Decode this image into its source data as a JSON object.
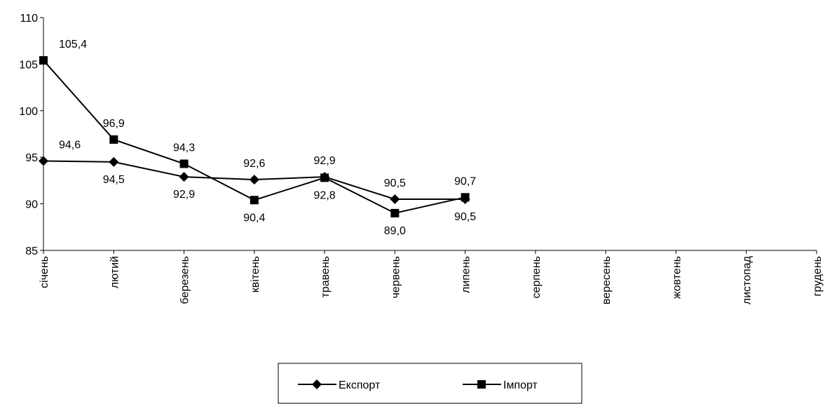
{
  "chart_data": {
    "type": "line",
    "categories": [
      "січень",
      "лютий",
      "березень",
      "квітень",
      "травень",
      "червень",
      "липень",
      "серпень",
      "вересень",
      "жовтень",
      "листопад",
      "грудень"
    ],
    "series": [
      {
        "name": "Експорт",
        "color": "#000000",
        "marker": "diamond",
        "values": [
          94.6,
          94.5,
          92.9,
          92.6,
          92.9,
          90.5,
          90.5,
          null,
          null,
          null,
          null,
          null
        ],
        "value_labels": [
          "94,6",
          "94,5",
          "92,9",
          "92,6",
          "92,9",
          "90,5",
          "90,5",
          null,
          null,
          null,
          null,
          null
        ]
      },
      {
        "name": "Імпорт",
        "color": "#000000",
        "marker": "square",
        "values": [
          105.4,
          96.9,
          94.3,
          90.4,
          92.8,
          89.0,
          90.7,
          null,
          null,
          null,
          null,
          null
        ],
        "value_labels": [
          "105,4",
          "96,9",
          "94,3",
          "90,4",
          "92,8",
          "89,0",
          "90,7",
          null,
          null,
          null,
          null,
          null
        ]
      }
    ],
    "ylim": [
      85,
      110
    ],
    "yticks": [
      85,
      90,
      95,
      100,
      105,
      110
    ],
    "grid": false,
    "legend": "bottom"
  }
}
